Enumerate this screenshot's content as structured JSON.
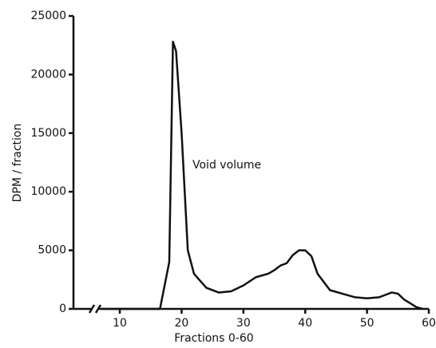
{
  "chart_data": {
    "type": "line",
    "y_label": "DPM / fraction",
    "x_label": "Fractions 0-60",
    "annotation": "Void volume",
    "x": [
      7,
      16.5,
      18,
      18.6,
      19.1,
      20,
      21,
      22,
      24,
      26,
      28,
      30,
      32,
      34,
      35,
      36,
      37,
      38,
      39,
      40,
      41,
      42,
      44,
      46,
      48,
      50,
      52,
      53,
      54,
      55,
      56,
      58,
      59
    ],
    "series": [
      {
        "color": "#111111",
        "values": [
          0,
          0,
          4000,
          22800,
          22000,
          15000,
          5000,
          3000,
          1800,
          1400,
          1500,
          2000,
          2700,
          3000,
          3300,
          3700,
          3900,
          4600,
          5000,
          5000,
          4500,
          3000,
          1600,
          1300,
          1000,
          900,
          1000,
          1200,
          1400,
          1300,
          800,
          150,
          0
        ]
      }
    ],
    "xlim": [
      2.5,
      60
    ],
    "xticks": [
      10,
      20,
      30,
      40,
      50,
      60
    ],
    "ylim": [
      0,
      25000
    ],
    "yticks": [
      0,
      5000,
      10000,
      15000,
      20000,
      25000
    ],
    "grid": false
  }
}
